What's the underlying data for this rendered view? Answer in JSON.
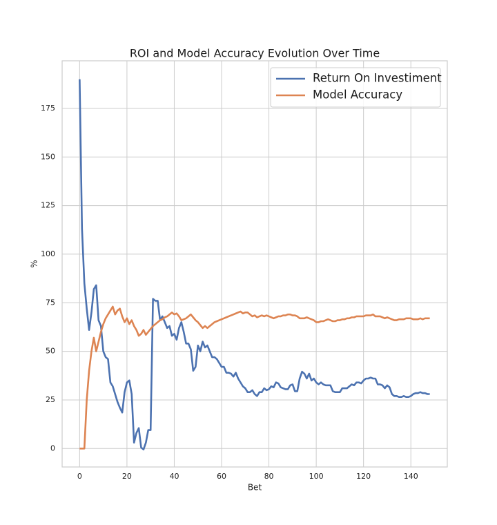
{
  "chart_data": {
    "type": "line",
    "title": "ROI and Model Accuracy Evolution Over Time",
    "x_label": "Bet",
    "y_label": "%",
    "x": [
      0,
      1,
      2,
      3,
      4,
      5,
      6,
      7,
      8,
      9,
      10,
      11,
      12,
      13,
      14,
      15,
      16,
      17,
      18,
      19,
      20,
      21,
      22,
      23,
      24,
      25,
      26,
      27,
      28,
      29,
      30,
      31,
      32,
      33,
      34,
      35,
      36,
      37,
      38,
      39,
      40,
      41,
      42,
      43,
      44,
      45,
      46,
      47,
      48,
      49,
      50,
      51,
      52,
      53,
      54,
      55,
      56,
      57,
      58,
      59,
      60,
      61,
      62,
      63,
      64,
      65,
      66,
      67,
      68,
      69,
      70,
      71,
      72,
      73,
      74,
      75,
      76,
      77,
      78,
      79,
      80,
      81,
      82,
      83,
      84,
      85,
      86,
      87,
      88,
      89,
      90,
      91,
      92,
      93,
      94,
      95,
      96,
      97,
      98,
      99,
      100,
      101,
      102,
      103,
      104,
      105,
      106,
      107,
      108,
      109,
      110,
      111,
      112,
      113,
      114,
      115,
      116,
      117,
      118,
      119,
      120,
      121,
      122,
      123,
      124,
      125,
      126,
      127,
      128,
      129,
      130,
      131,
      132,
      133,
      134,
      135,
      136,
      137,
      138,
      139,
      140,
      141,
      142,
      143,
      144,
      145,
      146,
      147,
      148
    ],
    "series": [
      {
        "name": "Return On Investiment",
        "color": "#4c72b0",
        "values": [
          190,
          113,
          85,
          72,
          61,
          70,
          82,
          84,
          66,
          63,
          50,
          47,
          46,
          34,
          32,
          28,
          24,
          21,
          18.5,
          29,
          34,
          35,
          28,
          3,
          8,
          10.5,
          0.5,
          -0.5,
          3,
          9.5,
          9.5,
          77,
          76,
          76,
          66,
          68,
          65,
          62,
          63,
          58,
          59,
          56,
          62,
          65,
          60,
          54,
          54,
          51,
          40,
          42,
          53,
          50,
          55,
          52,
          53,
          50,
          47,
          47,
          46,
          44,
          42,
          42,
          39,
          39,
          38.5,
          37,
          39,
          36,
          34,
          32,
          31,
          29,
          29,
          30,
          28,
          27,
          29,
          29,
          31,
          30,
          30.5,
          32,
          31.5,
          34,
          33.5,
          31.5,
          31,
          30.5,
          30.5,
          32.5,
          33,
          29.5,
          29.5,
          36,
          39.5,
          38.5,
          36,
          38.5,
          35,
          36,
          34,
          33,
          34,
          33,
          32.5,
          32.5,
          32.5,
          29.5,
          29,
          29,
          29,
          31,
          31,
          31,
          32,
          33,
          32.5,
          34,
          34,
          33.5,
          35,
          36,
          36,
          36.5,
          36,
          36,
          33,
          33,
          32.5,
          31,
          32.5,
          31.5,
          28,
          27,
          27,
          26.5,
          26.5,
          27,
          26.5,
          26.5,
          27,
          28,
          28.5,
          28.5,
          29,
          28.5,
          28.5,
          28,
          28
        ]
      },
      {
        "name": "Model Accuracy",
        "color": "#dd8452",
        "values": [
          0,
          0,
          0,
          25,
          40,
          50,
          57,
          50,
          55,
          60,
          64,
          67,
          69,
          71,
          73,
          69,
          71,
          72,
          68,
          65,
          67,
          64,
          66,
          63,
          61,
          58,
          59,
          61,
          58.5,
          60,
          61.5,
          63,
          64,
          65,
          66,
          66.5,
          67.5,
          68,
          69,
          70,
          69,
          69.5,
          68,
          66,
          66.5,
          67,
          68,
          69,
          67.5,
          66,
          65,
          63.5,
          62,
          63,
          62,
          63,
          64,
          65,
          65.5,
          66,
          66.5,
          67,
          67.5,
          68,
          68.5,
          69,
          69.5,
          70,
          70.5,
          69.5,
          70,
          70,
          69,
          68,
          68.5,
          67.5,
          68,
          68.5,
          68,
          68.5,
          68,
          67.5,
          67,
          67.5,
          68,
          68,
          68.5,
          68.5,
          69,
          69,
          68.5,
          68.5,
          68,
          67,
          67,
          67,
          67.5,
          67,
          66.5,
          66,
          65,
          65,
          65.5,
          65.5,
          66,
          66.5,
          66,
          65.5,
          65.5,
          66,
          66,
          66.5,
          66.5,
          67,
          67,
          67.5,
          67.5,
          68,
          68,
          68,
          68,
          68.5,
          68.5,
          68.5,
          69,
          68,
          68,
          68,
          67.5,
          67,
          67.5,
          67,
          66.5,
          66,
          66,
          66.5,
          66.5,
          66.5,
          67,
          67,
          67,
          66.5,
          66.5,
          66.5,
          67,
          66.5,
          67,
          67,
          67
        ]
      }
    ],
    "xlim": [
      -7.4,
      155.4
    ],
    "ylim": [
      -9.5,
      199.5
    ],
    "xticks": [
      0,
      20,
      40,
      60,
      80,
      100,
      120,
      140
    ],
    "yticks": [
      0,
      25,
      50,
      75,
      100,
      125,
      150,
      175
    ],
    "grid": true,
    "legend": "upper right"
  }
}
